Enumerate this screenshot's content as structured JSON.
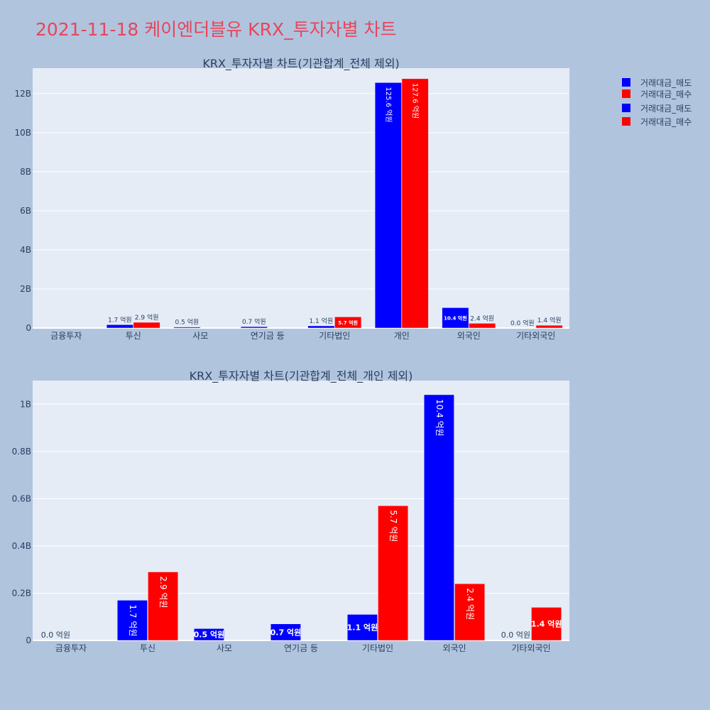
{
  "page": {
    "title": "2021-11-18 케이엔더블유 KRX_투자자별 차트"
  },
  "legend": [
    {
      "label": "거래대금_매도",
      "color": "#0000ff"
    },
    {
      "label": "거래대금_매수",
      "color": "#ff0000"
    },
    {
      "label": "거래대금_매도",
      "color": "#0000ff"
    },
    {
      "label": "거래대금_매수",
      "color": "#ff0000"
    }
  ],
  "chart_data": [
    {
      "type": "bar",
      "title": "KRX_투자자별 차트(기관합계_전체 제외)",
      "categories": [
        "금융투자",
        "투신",
        "사모",
        "연기금 등",
        "기타법인",
        "개인",
        "외국인",
        "기타외국인"
      ],
      "ylim": [
        0,
        13300000000
      ],
      "yticks": [
        0,
        2000000000,
        4000000000,
        6000000000,
        8000000000,
        10000000000,
        12000000000
      ],
      "yticklabels": [
        "0",
        "2B",
        "4B",
        "6B",
        "8B",
        "10B",
        "12B"
      ],
      "grid": true,
      "series": [
        {
          "name": "거래대금_매도",
          "color": "#0000ff",
          "values": [
            null,
            170000000,
            50000000,
            70000000,
            110000000,
            12560000000,
            1040000000,
            0
          ],
          "labels": [
            "",
            "1.7 억원",
            "0.5 억원",
            "0.7 억원",
            "1.1 억원",
            "125.6 억원",
            "10.4 억원",
            "0.0 억원"
          ]
        },
        {
          "name": "거래대금_매수",
          "color": "#ff0000",
          "values": [
            null,
            290000000,
            null,
            null,
            570000000,
            12760000000,
            240000000,
            140000000
          ],
          "labels": [
            "",
            "2.9 억원",
            "",
            "",
            "5.7 억원",
            "127.6 억원",
            "2.4 억원",
            "1.4 억원"
          ]
        }
      ]
    },
    {
      "type": "bar",
      "title": "KRX_투자자별 차트(기관합계_전체_개인 제외)",
      "categories": [
        "금융투자",
        "투신",
        "사모",
        "연기금 등",
        "기타법인",
        "외국인",
        "기타외국인"
      ],
      "ylim": [
        0,
        1100000000
      ],
      "yticks": [
        0,
        200000000,
        400000000,
        600000000,
        800000000,
        1000000000
      ],
      "yticklabels": [
        "0",
        "0.2B",
        "0.4B",
        "0.6B",
        "0.8B",
        "1B"
      ],
      "grid": true,
      "series": [
        {
          "name": "거래대금_매도",
          "color": "#0000ff",
          "values": [
            0,
            170000000,
            50000000,
            70000000,
            110000000,
            1040000000,
            0
          ],
          "labels": [
            "0.0 억원",
            "1.7 억원",
            "0.5 억원",
            "0.7 억원",
            "1.1 억원",
            "10.4 억원",
            "0.0 억원"
          ]
        },
        {
          "name": "거래대금_매수",
          "color": "#ff0000",
          "values": [
            null,
            290000000,
            null,
            null,
            570000000,
            240000000,
            140000000
          ],
          "labels": [
            "",
            "2.9 억원",
            "",
            "",
            "5.7 억원",
            "2.4 억원",
            "1.4 억원"
          ]
        }
      ]
    }
  ]
}
